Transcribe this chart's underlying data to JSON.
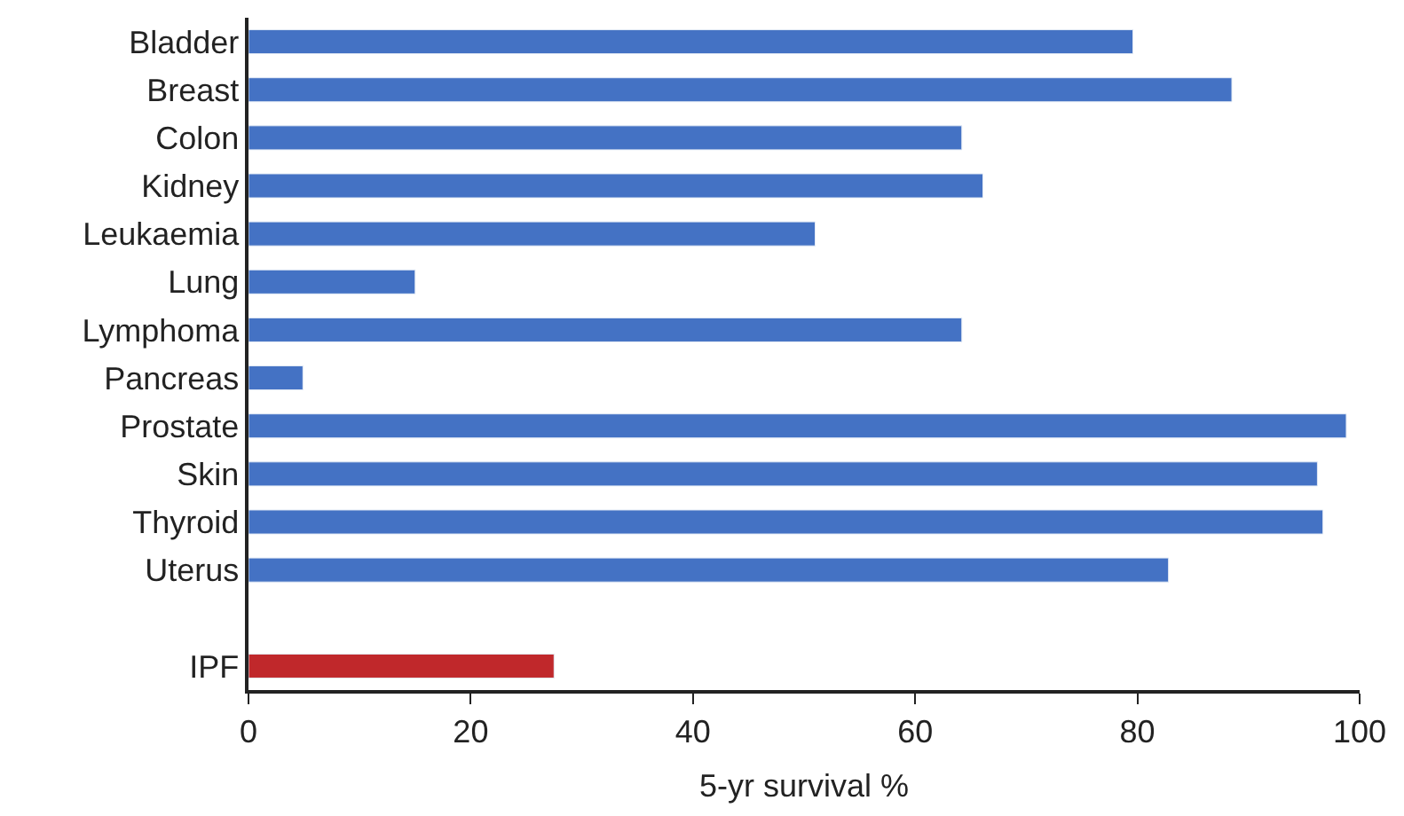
{
  "chart_data": {
    "type": "bar",
    "orientation": "horizontal",
    "categories": [
      "Bladder",
      "Breast",
      "Colon",
      "Kidney",
      "Leukaemia",
      "Lung",
      "Lymphoma",
      "Pancreas",
      "Prostate",
      "Skin",
      "Thyroid",
      "Uterus",
      null,
      "IPF"
    ],
    "values": [
      79.6,
      88.5,
      64.2,
      66.1,
      51.0,
      15.0,
      64.2,
      4.9,
      98.8,
      96.2,
      96.7,
      82.8,
      null,
      27.5
    ],
    "colors": [
      "#4472c4",
      "#4472c4",
      "#4472c4",
      "#4472c4",
      "#4472c4",
      "#4472c4",
      "#4472c4",
      "#4472c4",
      "#4472c4",
      "#4472c4",
      "#4472c4",
      "#4472c4",
      "#4472c4",
      "#c0282b"
    ],
    "xlabel": "5-yr survival %",
    "xlim": [
      0,
      100
    ],
    "xticks": [
      0,
      20,
      40,
      60,
      80,
      100
    ]
  }
}
